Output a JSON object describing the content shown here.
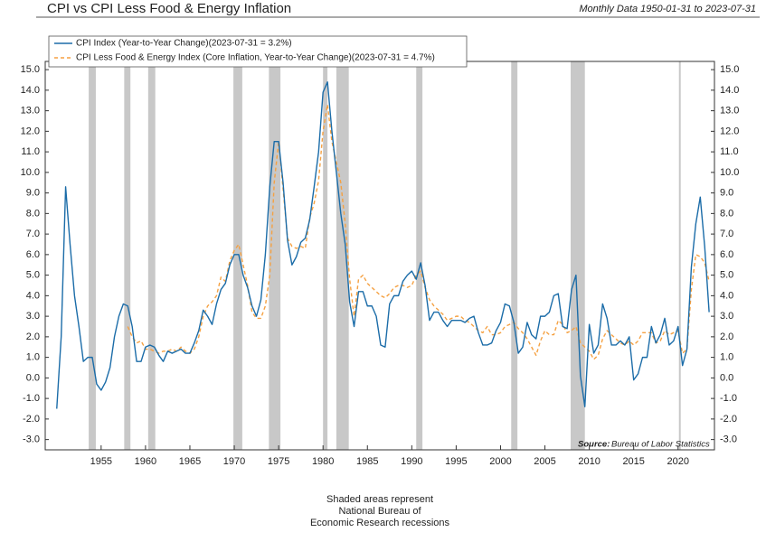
{
  "chart_data": {
    "type": "line",
    "title": "CPI vs CPI Less Food & Energy Inflation",
    "subtitle": "Monthly Data 1950-01-31 to 2023-07-31",
    "source_label": "Source:",
    "source": "Bureau of Labor Statistics",
    "note": [
      "Shaded areas represent",
      "National Bureau of",
      "Economic Research recessions"
    ],
    "x": [
      1950,
      1950.5,
      1951,
      1951.5,
      1952,
      1952.5,
      1953,
      1953.5,
      1954,
      1954.5,
      1955,
      1955.5,
      1956,
      1956.5,
      1957,
      1957.5,
      1958,
      1958.5,
      1959,
      1959.5,
      1960,
      1960.5,
      1961,
      1961.5,
      1962,
      1962.5,
      1963,
      1963.5,
      1964,
      1964.5,
      1965,
      1965.5,
      1966,
      1966.5,
      1967,
      1967.5,
      1968,
      1968.5,
      1969,
      1969.5,
      1970,
      1970.5,
      1971,
      1971.5,
      1972,
      1972.5,
      1973,
      1973.5,
      1974,
      1974.5,
      1975,
      1975.5,
      1976,
      1976.5,
      1977,
      1977.5,
      1978,
      1978.5,
      1979,
      1979.5,
      1980,
      1980.5,
      1981,
      1981.5,
      1982,
      1982.5,
      1983,
      1983.5,
      1984,
      1984.5,
      1985,
      1985.5,
      1986,
      1986.5,
      1987,
      1987.5,
      1988,
      1988.5,
      1989,
      1989.5,
      1990,
      1990.5,
      1991,
      1991.5,
      1992,
      1992.5,
      1993,
      1993.5,
      1994,
      1994.5,
      1995,
      1995.5,
      1996,
      1996.5,
      1997,
      1997.5,
      1998,
      1998.5,
      1999,
      1999.5,
      2000,
      2000.5,
      2001,
      2001.5,
      2002,
      2002.5,
      2003,
      2003.5,
      2004,
      2004.5,
      2005,
      2005.5,
      2006,
      2006.5,
      2007,
      2007.5,
      2008,
      2008.5,
      2009,
      2009.5,
      2010,
      2010.5,
      2011,
      2011.5,
      2012,
      2012.5,
      2013,
      2013.5,
      2014,
      2014.5,
      2015,
      2015.5,
      2016,
      2016.5,
      2017,
      2017.5,
      2018,
      2018.5,
      2019,
      2019.5,
      2020,
      2020.5,
      2021,
      2021.5,
      2022,
      2022.5,
      2023,
      2023.5
    ],
    "series": [
      {
        "name": "CPI Index (Year-to-Year Change)(2023-07-31 = 3.2%)",
        "color": "#1b6ca8",
        "dash": false,
        "values": [
          -1.5,
          2.0,
          9.3,
          6.5,
          4.0,
          2.5,
          0.8,
          1.0,
          1.0,
          -0.3,
          -0.6,
          -0.2,
          0.5,
          2.0,
          3.0,
          3.6,
          3.5,
          2.5,
          0.8,
          0.8,
          1.5,
          1.6,
          1.5,
          1.1,
          0.8,
          1.3,
          1.2,
          1.3,
          1.4,
          1.2,
          1.2,
          1.7,
          2.3,
          3.3,
          3.0,
          2.6,
          3.6,
          4.3,
          4.6,
          5.5,
          6.0,
          6.0,
          5.0,
          4.4,
          3.5,
          3.0,
          3.8,
          6.0,
          9.3,
          11.5,
          11.5,
          9.5,
          6.7,
          5.5,
          5.9,
          6.6,
          6.8,
          7.7,
          9.3,
          11.0,
          13.9,
          14.4,
          12.0,
          10.0,
          8.0,
          6.5,
          3.7,
          2.5,
          4.2,
          4.2,
          3.5,
          3.5,
          3.0,
          1.6,
          1.5,
          3.6,
          4.0,
          4.0,
          4.7,
          5.0,
          5.2,
          4.8,
          5.6,
          4.5,
          2.8,
          3.2,
          3.2,
          2.8,
          2.5,
          2.8,
          2.8,
          2.8,
          2.7,
          2.9,
          3.0,
          2.2,
          1.6,
          1.6,
          1.7,
          2.3,
          2.7,
          3.6,
          3.5,
          2.7,
          1.2,
          1.5,
          2.7,
          2.1,
          1.9,
          3.0,
          3.0,
          3.2,
          4.0,
          4.1,
          2.5,
          2.4,
          4.3,
          5.0,
          0.1,
          -1.4,
          2.6,
          1.2,
          1.6,
          3.6,
          2.9,
          1.6,
          1.6,
          1.8,
          1.6,
          2.0,
          -0.1,
          0.2,
          1.0,
          1.0,
          2.5,
          1.7,
          2.1,
          2.9,
          1.6,
          1.8,
          2.5,
          0.6,
          1.4,
          5.4,
          7.5,
          8.8,
          6.4,
          3.2
        ]
      },
      {
        "name": "CPI Less Food & Energy Index (Core Inflation, Year-to-Year Change)(2023-07-31 = 4.7%)",
        "color": "#f5a142",
        "dash": true,
        "values": [
          null,
          null,
          null,
          null,
          null,
          null,
          null,
          null,
          null,
          null,
          null,
          null,
          null,
          null,
          null,
          null,
          2.5,
          2.0,
          1.7,
          1.8,
          1.4,
          1.4,
          1.3,
          1.2,
          1.3,
          1.3,
          1.4,
          1.3,
          1.5,
          1.3,
          1.2,
          1.4,
          2.0,
          3.0,
          3.5,
          3.7,
          4.0,
          4.9,
          4.7,
          5.7,
          6.2,
          6.5,
          5.5,
          4.5,
          3.2,
          2.9,
          2.9,
          3.5,
          5.0,
          9.5,
          11.5,
          9.2,
          6.8,
          6.4,
          6.3,
          6.4,
          6.3,
          7.8,
          8.5,
          9.6,
          12.0,
          13.3,
          11.5,
          10.5,
          9.5,
          7.5,
          4.8,
          3.0,
          4.8,
          5.0,
          4.6,
          4.4,
          4.2,
          4.0,
          3.9,
          4.1,
          4.4,
          4.5,
          4.5,
          4.4,
          4.5,
          5.0,
          5.2,
          4.4,
          3.8,
          3.5,
          3.3,
          3.1,
          2.8,
          2.9,
          3.0,
          3.0,
          2.8,
          2.7,
          2.5,
          2.3,
          2.2,
          2.5,
          2.1,
          2.1,
          2.2,
          2.5,
          2.6,
          2.7,
          2.4,
          2.2,
          1.9,
          1.5,
          1.1,
          1.8,
          2.3,
          2.1,
          2.1,
          2.8,
          2.6,
          2.2,
          2.3,
          2.5,
          1.7,
          1.5,
          1.3,
          0.9,
          1.1,
          1.9,
          2.3,
          2.1,
          1.9,
          1.7,
          1.6,
          1.8,
          1.6,
          1.8,
          2.2,
          2.2,
          2.2,
          1.7,
          1.8,
          2.3,
          2.1,
          2.2,
          2.3,
          1.2,
          1.4,
          4.3,
          6.0,
          5.9,
          5.6,
          4.7
        ]
      }
    ],
    "recessions": [
      [
        1953.6,
        1954.4
      ],
      [
        1957.6,
        1958.3
      ],
      [
        1960.3,
        1961.1
      ],
      [
        1969.9,
        1970.9
      ],
      [
        1973.9,
        1975.2
      ],
      [
        1980.0,
        1980.5
      ],
      [
        1981.5,
        1982.9
      ],
      [
        1990.5,
        1991.2
      ],
      [
        2001.2,
        2001.9
      ],
      [
        2007.9,
        2009.5
      ],
      [
        2020.1,
        2020.3
      ]
    ],
    "recession_color": "#c8c8c8",
    "xlim": [
      1948.7,
      2024.1
    ],
    "xticks": [
      1955,
      1960,
      1965,
      1970,
      1975,
      1980,
      1985,
      1990,
      1995,
      2000,
      2005,
      2010,
      2015,
      2020
    ],
    "ylim": [
      -3.5,
      15.4
    ],
    "yticks": [
      {
        "value": -3,
        "label": "-3.0"
      },
      {
        "value": -2,
        "label": "-2.0"
      },
      {
        "value": -1,
        "label": "-1.0"
      },
      {
        "value": 0,
        "label": "0.0"
      },
      {
        "value": 1,
        "label": "1.0"
      },
      {
        "value": 2,
        "label": "2.0"
      },
      {
        "value": 3,
        "label": "3.0"
      },
      {
        "value": 4,
        "label": "4.0"
      },
      {
        "value": 5,
        "label": "5.0"
      },
      {
        "value": 6,
        "label": "6.0"
      },
      {
        "value": 7,
        "label": "7.0"
      },
      {
        "value": 8,
        "label": "8.0"
      },
      {
        "value": 9,
        "label": "9.0"
      },
      {
        "value": 10,
        "label": "10.0"
      },
      {
        "value": 11,
        "label": "11.0"
      },
      {
        "value": 12,
        "label": "12.0"
      },
      {
        "value": 13,
        "label": "13.0"
      },
      {
        "value": 14,
        "label": "14.0"
      },
      {
        "value": 15,
        "label": "15.0"
      }
    ],
    "grid": false
  }
}
